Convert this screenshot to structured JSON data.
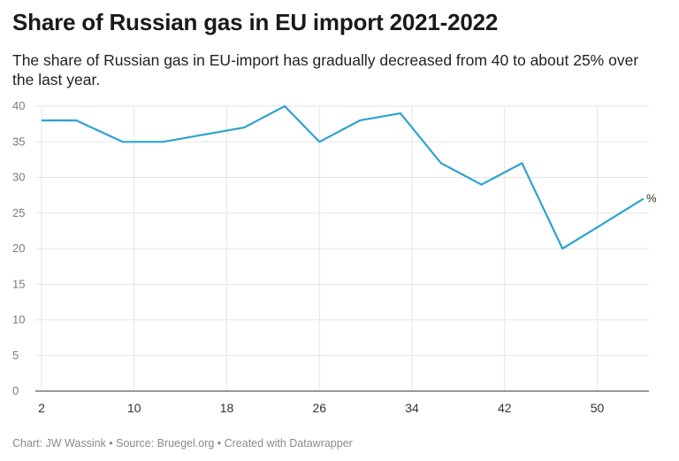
{
  "header": {
    "title": "Share of Russian gas in EU import 2021-2022",
    "subtitle": "The share of Russian gas in EU-import has gradually decreased from 40 to about 25% over the last year."
  },
  "footer": {
    "credit": "Chart: JW Wassink • Source: Bruegel.org • Created with Datawrapper"
  },
  "chart_data": {
    "type": "line",
    "title": "Share of Russian gas in EU import 2021-2022",
    "subtitle": "The share of Russian gas in EU-import has gradually decreased from 40 to about 25% over the last year.",
    "xlabel": "",
    "ylabel": "",
    "unit_label": "%",
    "xlim": [
      2,
      55
    ],
    "ylim": [
      0,
      40
    ],
    "x_ticks": [
      2,
      10,
      18,
      26,
      34,
      42,
      50
    ],
    "y_ticks": [
      0,
      5,
      10,
      15,
      20,
      25,
      30,
      35,
      40
    ],
    "grid": true,
    "legend": "none",
    "series": [
      {
        "color": "#2ea3d0",
        "x": [
          2,
          5,
          9,
          12.5,
          16,
          19.5,
          23,
          26,
          29.5,
          33,
          36.5,
          40,
          43.5,
          47,
          50,
          54
        ],
        "values": [
          38,
          38,
          35,
          35,
          36,
          37,
          40,
          35,
          38,
          39,
          32,
          29,
          32,
          20,
          23,
          27
        ]
      }
    ]
  }
}
